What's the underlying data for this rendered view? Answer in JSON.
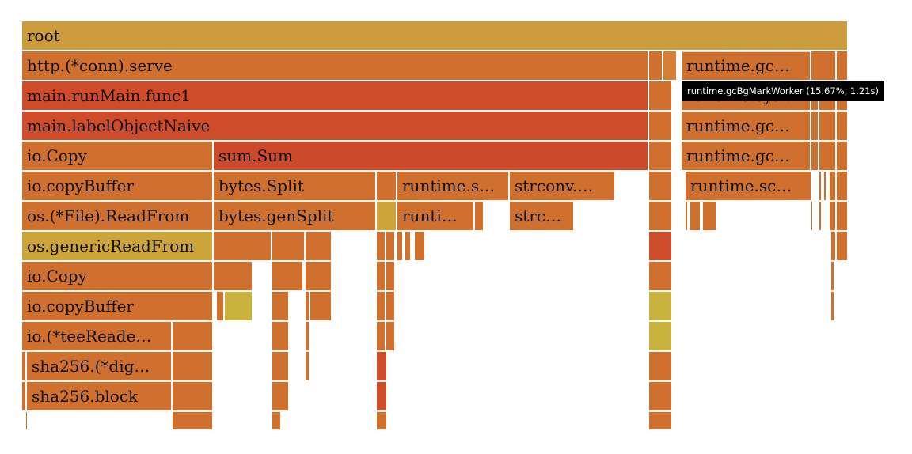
{
  "flamegraph": {
    "labels": {
      "root": "root",
      "serve": "http.(*conn).serve",
      "gc_bg_mark": "runtime.gc…",
      "run_main": "main.runMain.func1",
      "runtime_sys": "runtime.sys…",
      "label_object": "main.labelObjectNaive",
      "gc_drain": "runtime.gc…",
      "io_copy": "io.Copy",
      "sum_sum": "sum.Sum",
      "gc_mark_root": "runtime.gc…",
      "io_copy_buffer": "io.copyBuffer",
      "bytes_split": "bytes.Split",
      "runtime_s": "runtime.s…",
      "strconv": "strconv.…",
      "runtime_sc": "runtime.sc…",
      "file_read_from": "os.(*File).ReadFrom",
      "bytes_gen_split": "bytes.genSplit",
      "runti": "runti…",
      "strc": "strc…",
      "generic_read_from": "os.genericReadFrom",
      "io_copy_2": "io.Copy",
      "io_copy_buffer_2": "io.copyBuffer",
      "tee_reader": "io.(*teeReade…",
      "sha_dig": "sha256.(*dig…",
      "sha_block": "sha256.block"
    },
    "colors": {
      "root": "#cc9c3c",
      "orange": "#d0702f",
      "orange_light": "#d67e33",
      "red": "#cf4c2b",
      "red_dark": "#cc4a2a",
      "gold": "#cda43a",
      "yellow": "#c8b23c",
      "tan": "#d29a3c"
    }
  },
  "tooltip": {
    "text": "runtime.gcBgMarkWorker (15.67%, 1.21s)"
  }
}
